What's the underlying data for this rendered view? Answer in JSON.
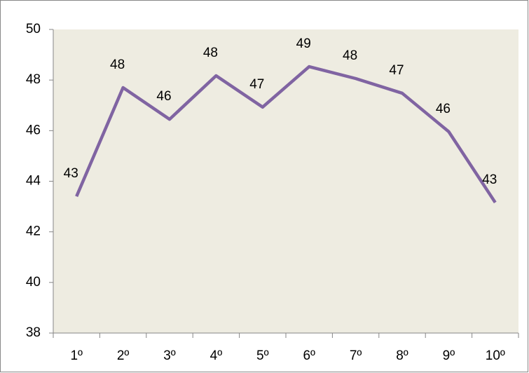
{
  "chart_data": {
    "type": "line",
    "categories": [
      "1º",
      "2º",
      "3º",
      "4º",
      "5º",
      "6º",
      "7º",
      "8º",
      "9º",
      "10º"
    ],
    "series": [
      {
        "color": "#8064a2",
        "values": [
          43.4,
          47.7,
          46.45,
          48.17,
          46.93,
          48.53,
          48.06,
          47.48,
          45.96,
          43.16
        ],
        "value_labels": [
          "43",
          "48",
          "46",
          "48",
          "47",
          "49",
          "48",
          "47",
          "46",
          "43"
        ]
      }
    ],
    "ylim": [
      38,
      50
    ],
    "yticks": [
      38,
      40,
      42,
      44,
      46,
      48,
      50
    ],
    "grid": false,
    "plot_background": "#eeece1"
  }
}
